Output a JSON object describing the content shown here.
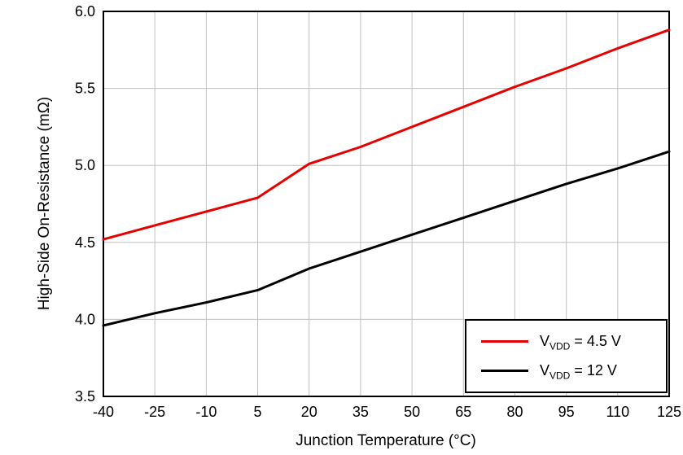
{
  "chart_data": {
    "type": "line",
    "x": [
      -40,
      -25,
      -10,
      5,
      20,
      35,
      50,
      65,
      80,
      95,
      110,
      125
    ],
    "series": [
      {
        "name": "VDD = 4.5 V",
        "color": "#e60000",
        "values": [
          4.52,
          4.61,
          4.7,
          4.79,
          5.01,
          5.12,
          5.25,
          5.38,
          5.51,
          5.63,
          5.76,
          5.88
        ]
      },
      {
        "name": "VDD = 12 V",
        "color": "#000000",
        "values": [
          3.96,
          4.04,
          4.11,
          4.19,
          4.33,
          4.44,
          4.55,
          4.66,
          4.77,
          4.88,
          4.98,
          5.09
        ]
      }
    ],
    "title": "",
    "xlabel": "Junction Temperature (°C)",
    "ylabel": "High-Side On-Resistance  (mΩ)",
    "xlim": [
      -40,
      125
    ],
    "ylim": [
      3.5,
      6.0
    ],
    "xticks": [
      -40,
      -25,
      -10,
      5,
      20,
      35,
      50,
      65,
      80,
      95,
      110,
      125
    ],
    "yticks": [
      3.5,
      4.0,
      4.5,
      5.0,
      5.5,
      6.0
    ],
    "grid": true,
    "grid_color": "#c0c0c0",
    "legend": {
      "position": "bottom-right",
      "entries": [
        {
          "prefix": "V",
          "sub": "VDD",
          "suffix": " = 4.5 V",
          "color": "#e60000"
        },
        {
          "prefix": "V",
          "sub": "VDD",
          "suffix": " = 12 V",
          "color": "#000000"
        }
      ]
    }
  }
}
